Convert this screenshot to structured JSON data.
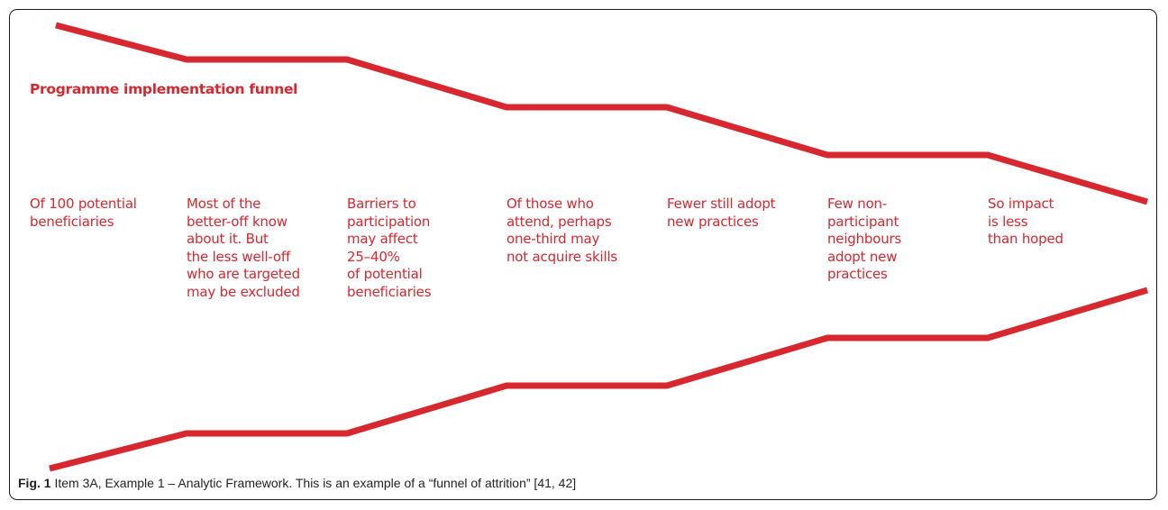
{
  "diagram": {
    "title": "Programme implementation funnel",
    "color": "#d7272f",
    "stages": [
      "Of 100 potential\nbeneficiaries",
      "Most of the\nbetter-off know\nabout it. But\nthe less well-off\nwho are targeted\nmay be excluded",
      "Barriers to\nparticipation\nmay affect\n25–40%\nof potential\nbeneficiaries",
      "Of those who\nattend, perhaps\none-third may\nnot acquire skills",
      "Fewer still adopt\nnew practices",
      "Few non-\nparticipant\nneighbours\nadopt new\npractices",
      "So impact\nis less\nthan hoped"
    ]
  },
  "caption": {
    "label": "Fig. 1",
    "text": " Item 3A, Example 1 – Analytic Framework. This is an example of a “funnel of attrition” [41, 42]"
  }
}
